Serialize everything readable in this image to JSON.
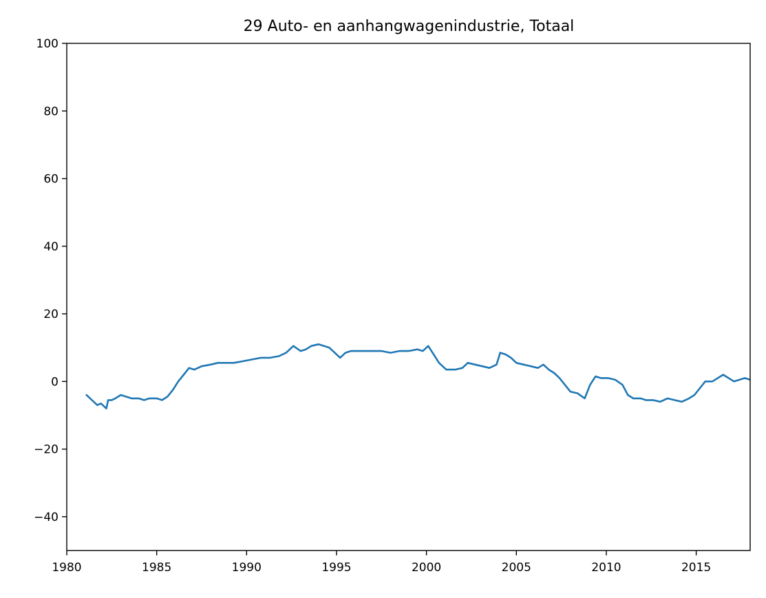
{
  "chart_data": {
    "type": "line",
    "title": "29 Auto- en aanhangwagenindustrie, Totaal",
    "xlabel": "",
    "ylabel": "",
    "xlim": [
      1980,
      2018
    ],
    "ylim": [
      -50,
      100
    ],
    "xticks": [
      1980,
      1985,
      1990,
      1995,
      2000,
      2005,
      2010,
      2015
    ],
    "xtick_labels": [
      "1980",
      "1985",
      "1990",
      "1995",
      "2000",
      "2005",
      "2010",
      "2015"
    ],
    "yticks": [
      -40,
      -20,
      0,
      20,
      40,
      60,
      80,
      100
    ],
    "ytick_labels": [
      "−40",
      "−20",
      "0",
      "20",
      "40",
      "60",
      "80",
      "100"
    ],
    "grid": false,
    "colors": {
      "series": "#1f77b4"
    },
    "series": [
      {
        "x": [
          1981.1,
          1981.4,
          1981.7,
          1981.9,
          1982.1,
          1982.2,
          1982.3,
          1982.5,
          1982.7,
          1983.0,
          1983.3,
          1983.6,
          1984.0,
          1984.3,
          1984.6,
          1985.0,
          1985.3,
          1985.6,
          1985.9,
          1986.2,
          1986.5,
          1986.8,
          1987.1,
          1987.5,
          1988.0,
          1988.4,
          1988.8,
          1989.3,
          1989.8,
          1990.3,
          1990.8,
          1991.3,
          1991.8,
          1992.2,
          1992.6,
          1993.0,
          1993.3,
          1993.6,
          1994.0,
          1994.3,
          1994.6,
          1994.9,
          1995.2,
          1995.5,
          1995.8,
          1996.2,
          1996.6,
          1997.0,
          1997.5,
          1998.0,
          1998.5,
          1999.0,
          1999.5,
          1999.8,
          2000.1,
          2000.4,
          2000.7,
          2001.1,
          2001.6,
          2002.0,
          2002.3,
          2002.7,
          2003.1,
          2003.5,
          2003.9,
          2004.1,
          2004.4,
          2004.7,
          2005.0,
          2005.4,
          2005.8,
          2006.2,
          2006.5,
          2006.8,
          2007.1,
          2007.4,
          2007.7,
          2008.0,
          2008.4,
          2008.8,
          2009.1,
          2009.4,
          2009.7,
          2010.1,
          2010.5,
          2010.9,
          2011.2,
          2011.5,
          2011.9,
          2012.2,
          2012.6,
          2013.0,
          2013.4,
          2013.8,
          2014.2,
          2014.6,
          2014.9,
          2015.2,
          2015.5,
          2015.9,
          2016.2,
          2016.5,
          2016.8,
          2017.1,
          2017.4,
          2017.7,
          2018.0
        ],
        "values": [
          -4.0,
          -5.5,
          -7.0,
          -6.5,
          -7.5,
          -8.0,
          -5.5,
          -5.5,
          -5.0,
          -4.0,
          -4.5,
          -5.0,
          -5.0,
          -5.5,
          -5.0,
          -5.0,
          -5.5,
          -4.5,
          -2.5,
          0.0,
          2.0,
          4.0,
          3.5,
          4.5,
          5.0,
          5.5,
          5.5,
          5.5,
          6.0,
          6.5,
          7.0,
          7.0,
          7.5,
          8.5,
          10.5,
          9.0,
          9.5,
          10.5,
          11.0,
          10.5,
          10.0,
          8.5,
          7.0,
          8.5,
          9.0,
          9.0,
          9.0,
          9.0,
          9.0,
          8.5,
          9.0,
          9.0,
          9.5,
          9.0,
          10.5,
          8.0,
          5.5,
          3.5,
          3.5,
          4.0,
          5.5,
          5.0,
          4.5,
          4.0,
          5.0,
          8.5,
          8.0,
          7.0,
          5.5,
          5.0,
          4.5,
          4.0,
          5.0,
          3.5,
          2.5,
          1.0,
          -1.0,
          -3.0,
          -3.5,
          -5.0,
          -1.0,
          1.5,
          1.0,
          1.0,
          0.5,
          -1.0,
          -4.0,
          -5.0,
          -5.0,
          -5.5,
          -5.5,
          -6.0,
          -5.0,
          -5.5,
          -6.0,
          -5.0,
          -4.0,
          -2.0,
          0.0,
          0.0,
          1.0,
          2.0,
          1.0,
          0.0,
          0.5,
          1.0,
          0.5
        ]
      }
    ]
  }
}
